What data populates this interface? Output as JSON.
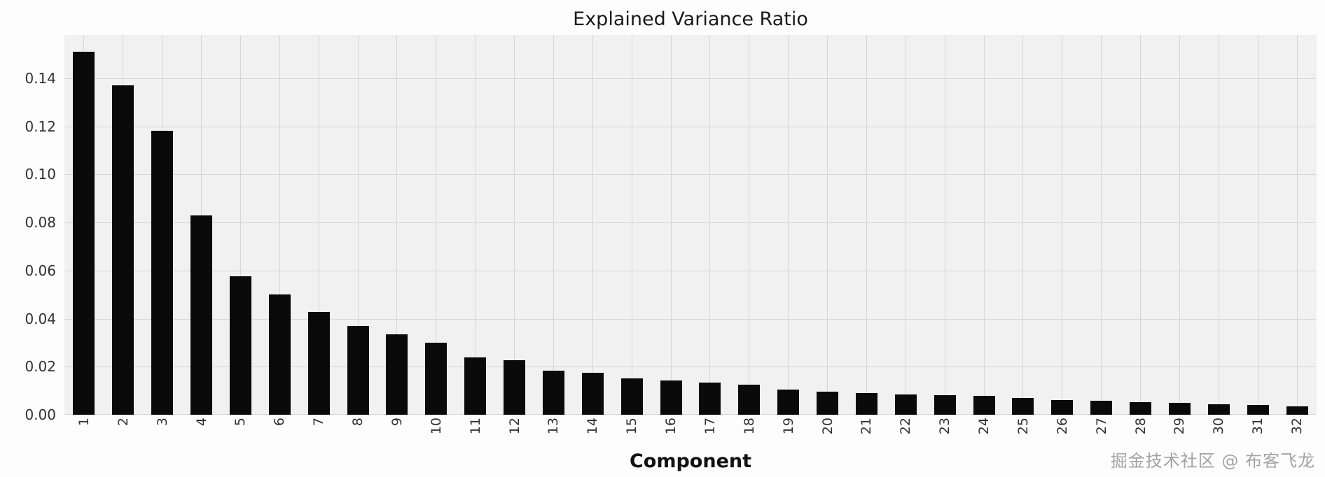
{
  "figure": {
    "watermark": "掘金技术社区 @ 布客飞龙"
  },
  "chart_data": {
    "type": "bar",
    "title": "Explained Variance Ratio",
    "xlabel": "Component",
    "ylabel": "",
    "categories": [
      "1",
      "2",
      "3",
      "4",
      "5",
      "6",
      "7",
      "8",
      "9",
      "10",
      "11",
      "12",
      "13",
      "14",
      "15",
      "16",
      "17",
      "18",
      "19",
      "20",
      "21",
      "22",
      "23",
      "24",
      "25",
      "26",
      "27",
      "28",
      "29",
      "30",
      "31",
      "32"
    ],
    "values": [
      0.151,
      0.137,
      0.118,
      0.083,
      0.0575,
      0.05,
      0.0427,
      0.037,
      0.0335,
      0.03,
      0.024,
      0.0228,
      0.0182,
      0.0175,
      0.0152,
      0.0142,
      0.0135,
      0.0125,
      0.0106,
      0.0096,
      0.009,
      0.0085,
      0.0082,
      0.0078,
      0.007,
      0.0062,
      0.0057,
      0.0052,
      0.005,
      0.0045,
      0.004,
      0.0035
    ],
    "ylim": [
      0,
      0.158
    ],
    "yticks": [
      0.0,
      0.02,
      0.04,
      0.06,
      0.08,
      0.1,
      0.12,
      0.14
    ],
    "grid": true,
    "legend": "none",
    "colors": {
      "bar": "#0a0a0a",
      "plot_bg": "#f1f1f1",
      "grid": "#d6d6d6",
      "tick_text": "#303030",
      "watermark": "#a3a3a3"
    }
  }
}
